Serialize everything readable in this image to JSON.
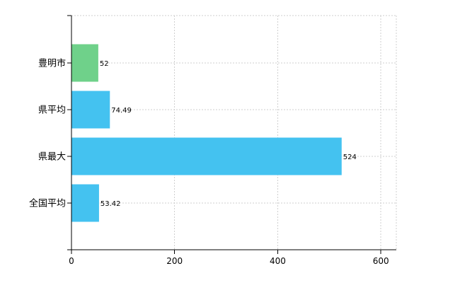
{
  "chart_data": {
    "type": "bar",
    "orientation": "horizontal",
    "categories": [
      "豊明市",
      "県平均",
      "県最大",
      "全国平均"
    ],
    "values": [
      52,
      74.49,
      524,
      53.42
    ],
    "value_labels": [
      "52",
      "74.49",
      "524",
      "53.42"
    ],
    "bar_colors": [
      "#6fd18a",
      "#44c2f0",
      "#44c2f0",
      "#44c2f0"
    ],
    "x_ticks": [
      0,
      200,
      400,
      600
    ],
    "x_tick_labels": [
      "0",
      "200",
      "400",
      "600"
    ],
    "xlim": [
      0,
      630
    ],
    "grid": true,
    "title": "",
    "xlabel": "",
    "ylabel": ""
  }
}
